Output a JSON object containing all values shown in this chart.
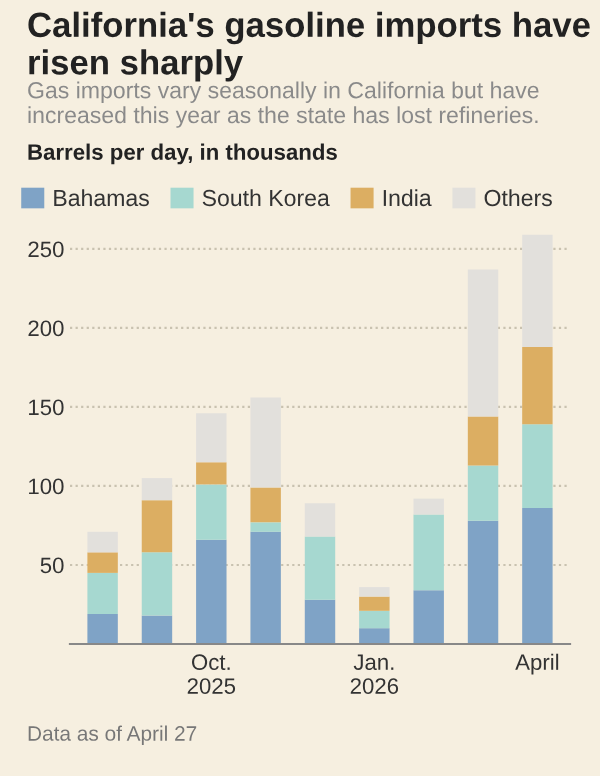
{
  "chart_data": {
    "type": "bar",
    "stacked": true,
    "title": "California's gasoline imports have risen sharply",
    "subtitle": "Gas imports vary seasonally in California but have increased this year as the state has lost refineries.",
    "ylabel": "Barrels per day, in thousands",
    "categories": [
      null,
      null,
      "Oct.\n2025",
      null,
      null,
      "Jan.\n2026",
      null,
      null,
      "April"
    ],
    "series": [
      {
        "name": "Bahamas",
        "color": "#7fa3c6",
        "values": [
          19,
          18,
          66,
          71,
          28,
          10,
          34,
          78,
          86
        ]
      },
      {
        "name": "South Korea",
        "color": "#a6d8d0",
        "values": [
          26,
          40,
          35,
          6,
          40,
          11,
          48,
          35,
          53
        ]
      },
      {
        "name": "India",
        "color": "#dcae62",
        "values": [
          13,
          33,
          14,
          22,
          0,
          9,
          0,
          31,
          49
        ]
      },
      {
        "name": "Others",
        "color": "#e2e0dc",
        "values": [
          13,
          14,
          31,
          57,
          21,
          6,
          10,
          93,
          71
        ]
      }
    ],
    "ylim": [
      0,
      262
    ],
    "yticks": [
      50,
      100,
      150,
      200,
      250
    ],
    "grid": "y",
    "legend": "top",
    "annotations": [
      "Data as of April 27"
    ]
  }
}
